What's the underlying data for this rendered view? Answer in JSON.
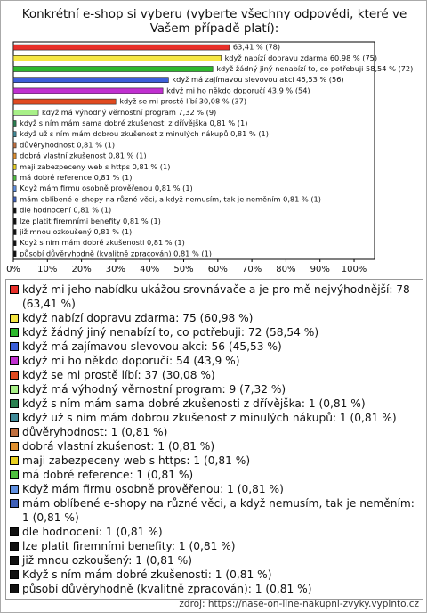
{
  "chart_data": {
    "type": "hbar",
    "title": "Konkrétní e-shop si vyberu (vyberte všechny odpovědi, které ve Vašem případě platí):",
    "categories": [
      "když mi jeho nabídku ukážou srovnávače a je pro mě nejvýhodnější: 78 (63,41 %)",
      "když nabízí dopravu zdarma: 75 (60,98 %)",
      "když žádný jiný nenabízí to, co potřebuji: 72 (58,54 %)",
      "když má zajímavou slevovou akci: 56 (45,53 %)",
      "když mi ho někdo doporučí: 54 (43,9 %)",
      "když se mi prostě líbí: 37 (30,08 %)",
      "když má výhodný věrnostní program: 9 (7,32 %)",
      "když s ním mám sama dobré zkušenosti z dřívějška: 1 (0,81 %)",
      "když už s ním mám dobrou zkušenost z minulých nákupů: 1 (0,81 %)",
      "důvěryhodnost: 1 (0,81 %)",
      "dobrá vlastní zkušenost: 1 (0,81 %)",
      "maji zabezpeceny web s https: 1 (0,81 %)",
      "má dobré reference: 1 (0,81 %)",
      "Když mám firmu osobně prověřenou: 1 (0,81 %)",
      "mám oblíbené e-shopy na různé věci, a když nemusím, tak je neměním: 1 (0,81 %)",
      "dle hodnocení: 1 (0,81 %)",
      "lze platit firemními benefity: 1 (0,81 %)",
      "již mnou ozkoušený: 1 (0,81 %)",
      "Když s ním mám dobré zkušenosti: 1 (0,81 %)",
      "působí důvěryhodně (kvalitně zpracován): 1 (0,81 %)"
    ],
    "values": [
      63.41,
      60.98,
      58.54,
      45.53,
      43.9,
      30.08,
      7.32,
      0.81,
      0.81,
      0.81,
      0.81,
      0.81,
      0.81,
      0.81,
      0.81,
      0.81,
      0.81,
      0.81,
      0.81,
      0.81
    ],
    "value_labels": [
      "63,41 % (78)",
      "když nabízí dopravu zdarma 60,98 % (75)",
      "když žádný jiný nenabízí to, co potřebuji 58,54 % (72)",
      "když má zajímavou slevovou akci 45,53 % (56)",
      "když mi ho někdo doporučí 43,9 % (54)",
      "když se mi prostě líbí 30,08 % (37)",
      "když má výhodný věrnostní program 7,32 % (9)",
      "když s ním mám sama dobré zkušenosti z dřívějška 0,81 % (1)",
      "když už s ním mám dobrou zkušenost z minulých nákupů 0,81 % (1)",
      "důvěryhodnost 0,81 % (1)",
      "dobrá vlastní zkušenost 0,81 % (1)",
      "maji zabezpeceny web s https 0,81 % (1)",
      "má dobré reference 0,81 % (1)",
      "Když mám firmu osobně prověřenou 0,81 % (1)",
      "mám oblíbené e-shopy na různé věci, a když nemusím, tak je neměním 0,81 % (1)",
      "dle hodnocení 0,81 % (1)",
      "lze platit firemními benefity 0,81 % (1)",
      "již mnou ozkoušený 0,81 % (1)",
      "Když s ním mám dobré zkušenosti 0,81 % (1)",
      "působí důvěryhodně (kvalitně zpracován) 0,81 % (1)"
    ],
    "colors": [
      "#e8302a",
      "#f5e642",
      "#2db82d",
      "#3b5fd9",
      "#c030d0",
      "#e04a20",
      "#a8f088",
      "#2a8050",
      "#408a98",
      "#c07040",
      "#e09030",
      "#e8d020",
      "#50c040",
      "#6090e0",
      "#4060b8",
      "#111111",
      "#111111",
      "#111111",
      "#111111",
      "#111111"
    ],
    "xlim": [
      0,
      106
    ],
    "xticks": [
      {
        "value": 0,
        "label": "0%"
      },
      {
        "value": 10,
        "label": "10%"
      },
      {
        "value": 20,
        "label": "20%"
      },
      {
        "value": 30,
        "label": "30%"
      },
      {
        "value": 40,
        "label": "40%"
      },
      {
        "value": 50,
        "label": "50%"
      },
      {
        "value": 60,
        "label": "60%"
      },
      {
        "value": 70,
        "label": "70%"
      },
      {
        "value": 80,
        "label": "80%"
      },
      {
        "value": 90,
        "label": "90%"
      },
      {
        "value": 100,
        "label": "100%"
      }
    ],
    "source": "zdroj: https://nase-on-line-nakupni-zvyky.vyplnto.cz"
  }
}
